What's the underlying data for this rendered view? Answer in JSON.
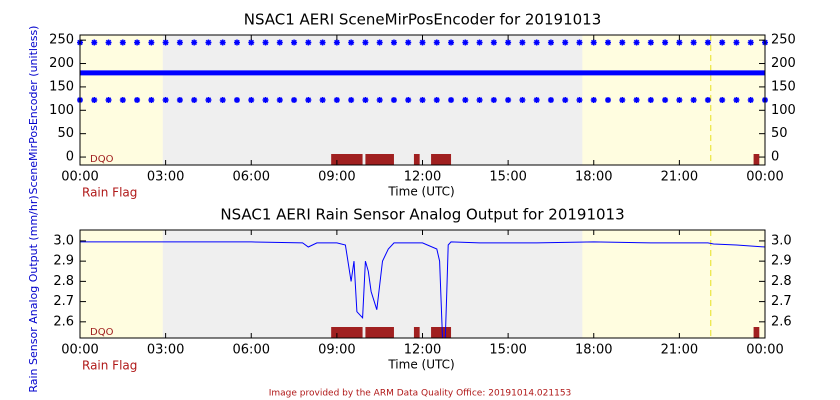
{
  "chart_data": [
    {
      "type": "line",
      "title": "NSAC1 AERI SceneMirPosEncoder for 20191013",
      "ylabel": "SceneMirPosEncoder (unitless)",
      "xlabel": "Time (UTC)",
      "xlim": [
        0,
        24
      ],
      "xticks": [
        {
          "value": 0,
          "label": "00:00"
        },
        {
          "value": 3,
          "label": "03:00"
        },
        {
          "value": 6,
          "label": "06:00"
        },
        {
          "value": 9,
          "label": "09:00"
        },
        {
          "value": 12,
          "label": "12:00"
        },
        {
          "value": 15,
          "label": "15:00"
        },
        {
          "value": 18,
          "label": "18:00"
        },
        {
          "value": 21,
          "label": "21:00"
        },
        {
          "value": 24,
          "label": "00:00"
        }
      ],
      "ylim": [
        -17,
        261
      ],
      "yticks": [
        0,
        50,
        100,
        150,
        200,
        250
      ],
      "x": [
        0,
        0.5,
        1,
        1.5,
        2,
        2.5,
        3,
        3.5,
        4,
        4.5,
        5,
        5.5,
        6,
        6.5,
        7,
        7.5,
        8,
        8.5,
        9,
        9.5,
        10,
        10.5,
        11,
        11.5,
        12,
        12.5,
        13,
        13.5,
        14,
        14.5,
        15,
        15.5,
        16,
        16.5,
        17,
        17.5,
        18,
        18.5,
        19,
        19.5,
        20,
        20.5,
        21,
        21.5,
        22,
        22.5,
        23,
        23.5,
        24
      ],
      "series": [
        {
          "color": "#0000ff",
          "mode": "markers",
          "values": [
            245,
            245,
            245,
            245,
            245,
            245,
            245,
            245,
            245,
            245,
            245,
            245,
            245,
            245,
            245,
            245,
            245,
            245,
            245,
            245,
            245,
            245,
            245,
            245,
            245,
            245,
            245,
            245,
            245,
            245,
            245,
            245,
            245,
            245,
            245,
            245,
            245,
            245,
            245,
            245,
            245,
            245,
            245,
            245,
            245,
            245,
            245,
            245,
            245
          ]
        },
        {
          "color": "#0000ff",
          "mode": "lines",
          "values": [
            180,
            180,
            180,
            180,
            180,
            180,
            180,
            180,
            180,
            180,
            180,
            180,
            180,
            180,
            180,
            180,
            180,
            180,
            180,
            180,
            180,
            180,
            180,
            180,
            180,
            180,
            180,
            180,
            180,
            180,
            180,
            180,
            180,
            180,
            180,
            180,
            180,
            180,
            180,
            180,
            180,
            180,
            180,
            180,
            180,
            180,
            180,
            180,
            180
          ]
        },
        {
          "color": "#0000ff",
          "mode": "markers",
          "values": [
            122,
            122,
            122,
            122,
            122,
            122,
            122,
            122,
            122,
            122,
            122,
            122,
            122,
            122,
            122,
            122,
            122,
            122,
            122,
            122,
            122,
            122,
            122,
            122,
            122,
            122,
            122,
            122,
            122,
            122,
            122,
            122,
            122,
            122,
            122,
            122,
            122,
            122,
            122,
            122,
            122,
            122,
            122,
            122,
            122,
            122,
            122,
            122,
            122
          ]
        }
      ],
      "shading": {
        "color": "#fffde0",
        "background": "#efefef",
        "intervals": [
          [
            0,
            2.9
          ],
          [
            17.6,
            24
          ]
        ]
      },
      "vline": 22.1,
      "rain_flag": {
        "label": "Rain Flag",
        "dqo": "DQO",
        "color": "#a02020",
        "intervals": [
          [
            8.8,
            9.9
          ],
          [
            10.0,
            11.0
          ],
          [
            11.7,
            11.9
          ],
          [
            12.3,
            13.0
          ],
          [
            23.6,
            23.8
          ]
        ]
      }
    },
    {
      "type": "line",
      "title": "NSAC1 AERI Rain Sensor Analog Output for 20191013",
      "ylabel": "Rain Sensor Analog Output (mm/hr)",
      "xlabel": "Time (UTC)",
      "xlim": [
        0,
        24
      ],
      "xticks": [
        {
          "value": 0,
          "label": "00:00"
        },
        {
          "value": 3,
          "label": "03:00"
        },
        {
          "value": 6,
          "label": "06:00"
        },
        {
          "value": 9,
          "label": "09:00"
        },
        {
          "value": 12,
          "label": "12:00"
        },
        {
          "value": 15,
          "label": "15:00"
        },
        {
          "value": 18,
          "label": "18:00"
        },
        {
          "value": 21,
          "label": "21:00"
        },
        {
          "value": 24,
          "label": "00:00"
        }
      ],
      "ylim": [
        2.52,
        3.054
      ],
      "yticks": [
        2.6,
        2.7,
        2.8,
        2.9,
        {
          "value": 3,
          "label": "3.0"
        }
      ],
      "x": [
        0,
        2,
        4,
        6,
        7.8,
        8.0,
        8.3,
        9.0,
        9.3,
        9.5,
        9.6,
        9.7,
        9.9,
        10.0,
        10.1,
        10.2,
        10.4,
        10.6,
        10.8,
        11.0,
        12.0,
        12.5,
        12.6,
        12.7,
        12.8,
        12.85,
        12.9,
        13.0,
        14,
        16,
        18,
        20,
        22,
        22.2,
        23,
        24
      ],
      "series": [
        {
          "color": "#0000ff",
          "mode": "lines",
          "values": [
            2.995,
            2.995,
            2.995,
            2.995,
            2.99,
            2.97,
            2.99,
            2.99,
            2.98,
            2.8,
            2.9,
            2.65,
            2.62,
            2.9,
            2.85,
            2.75,
            2.66,
            2.9,
            2.96,
            2.99,
            2.99,
            2.96,
            2.9,
            2.52,
            2.52,
            2.75,
            2.98,
            2.995,
            2.99,
            2.99,
            2.995,
            2.99,
            2.99,
            2.985,
            2.98,
            2.97
          ]
        }
      ],
      "shading": {
        "color": "#fffde0",
        "background": "#efefef",
        "intervals": [
          [
            0,
            2.9
          ],
          [
            17.6,
            24
          ]
        ]
      },
      "vline": 22.1,
      "rain_flag": {
        "label": "Rain Flag",
        "dqo": "DQO",
        "color": "#a02020",
        "intervals": [
          [
            8.8,
            9.9
          ],
          [
            10.0,
            11.0
          ],
          [
            11.7,
            11.9
          ],
          [
            12.3,
            13.0
          ],
          [
            23.6,
            23.8
          ]
        ]
      }
    }
  ],
  "footer": "Image provided by the ARM Data Quality Office: 20191014.021153"
}
